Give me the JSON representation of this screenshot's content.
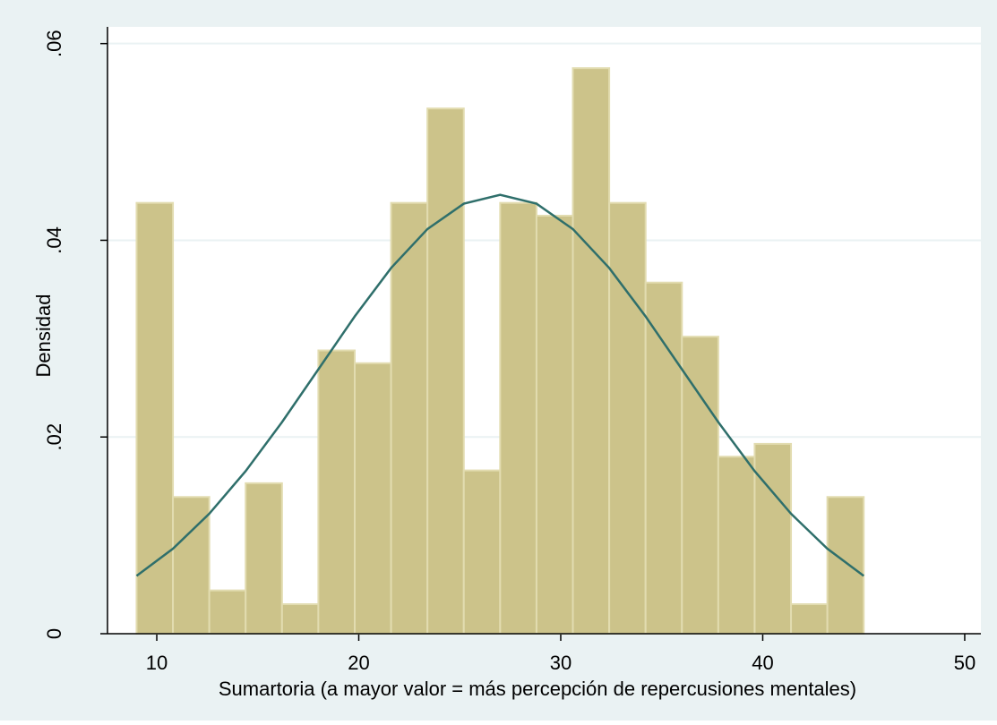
{
  "chart_data": {
    "type": "histogram",
    "xlabel": "Sumartoria (a mayor valor = más percepción de repercusiones mentales)",
    "ylabel": "Densidad",
    "bins": [
      9,
      10.8,
      12.6,
      14.4,
      16.2,
      18,
      19.8,
      21.6,
      23.4,
      25.2,
      27,
      28.8,
      30.6,
      32.4,
      34.2,
      36,
      37.8,
      39.6,
      41.4,
      43.2,
      45
    ],
    "values": [
      0.0438,
      0.0139,
      0.0044,
      0.0153,
      0.003,
      0.0288,
      0.0275,
      0.0438,
      0.0534,
      0.0166,
      0.0438,
      0.0425,
      0.0575,
      0.0438,
      0.0357,
      0.0302,
      0.018,
      0.0193,
      0.003,
      0.0139
    ],
    "color": "#ccc38a",
    "curve": {
      "color": "#2f6f6b",
      "x": [
        9,
        10.8,
        12.6,
        14.4,
        16.2,
        18,
        19.8,
        21.6,
        23.4,
        25.2,
        27,
        28.8,
        30.6,
        32.4,
        34.2,
        36,
        37.8,
        39.6,
        41.4,
        43.2,
        45
      ],
      "y": [
        0.00588,
        0.00864,
        0.0122,
        0.01653,
        0.02151,
        0.02688,
        0.03226,
        0.03718,
        0.04114,
        0.04372,
        0.04462,
        0.04372,
        0.04114,
        0.03718,
        0.03226,
        0.02688,
        0.02151,
        0.01653,
        0.0122,
        0.00864,
        0.00588
      ]
    },
    "xlim": [
      7.56,
      50.8
    ],
    "ylim": [
      0,
      0.0617
    ],
    "xticks": [
      10,
      20,
      30,
      40,
      50
    ],
    "yticks": [
      0,
      {
        "value": 0.02,
        "label": ".02"
      },
      {
        "value": 0.04,
        "label": ".04"
      },
      {
        "value": 0.06,
        "label": ".06"
      }
    ],
    "grid": true
  }
}
